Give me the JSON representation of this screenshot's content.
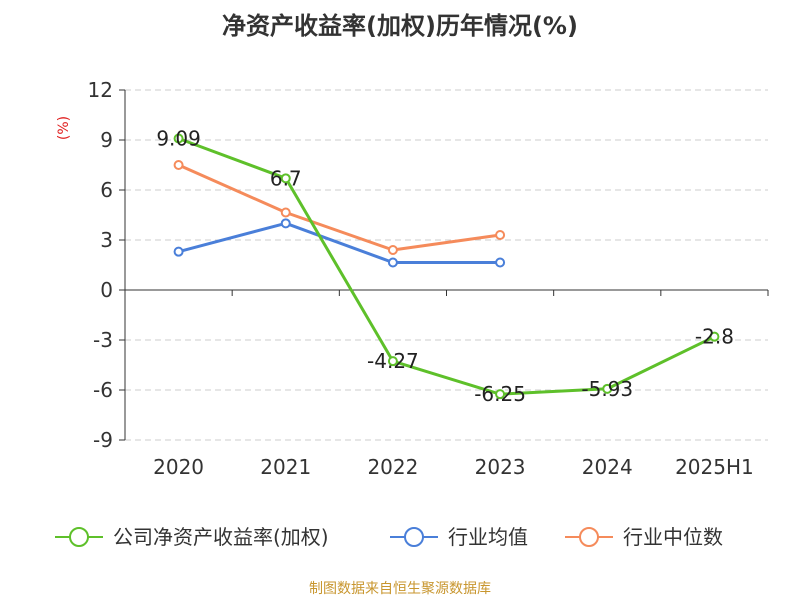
{
  "title": "净资产收益率(加权)历年情况(%)",
  "source": "制图数据来自恒生聚源数据库",
  "colors": {
    "company": "#5ec02a",
    "industry_avg": "#4a7fd9",
    "industry_median": "#f58b5b",
    "ylabel": "#e02020",
    "source": "#c8962e",
    "grid": "#cccccc",
    "axis": "#333333"
  },
  "chart_data": {
    "type": "line",
    "title": "净资产收益率(加权)历年情况(%)",
    "ylabel": "(%)",
    "xlabel": "",
    "categories": [
      "2020",
      "2021",
      "2022",
      "2023",
      "2024",
      "2025H1"
    ],
    "ylim": [
      -9,
      12
    ],
    "yticks": [
      12,
      9,
      6,
      3,
      0,
      -3,
      -6,
      -9
    ],
    "grid": true,
    "legend_position": "bottom",
    "series": [
      {
        "name": "公司净资产收益率(加权)",
        "key": "company",
        "values": [
          9.09,
          6.7,
          -4.27,
          -6.25,
          -5.93,
          -2.8
        ],
        "labels": [
          "9.09",
          "6.7",
          "-4.27",
          "-6.25",
          "-5.93",
          "-2.8"
        ]
      },
      {
        "name": "行业均值",
        "key": "industry_avg",
        "values": [
          2.3,
          4.0,
          1.65,
          1.65,
          null,
          null
        ]
      },
      {
        "name": "行业中位数",
        "key": "industry_median",
        "values": [
          7.5,
          4.65,
          2.4,
          3.3,
          null,
          null
        ]
      }
    ]
  }
}
